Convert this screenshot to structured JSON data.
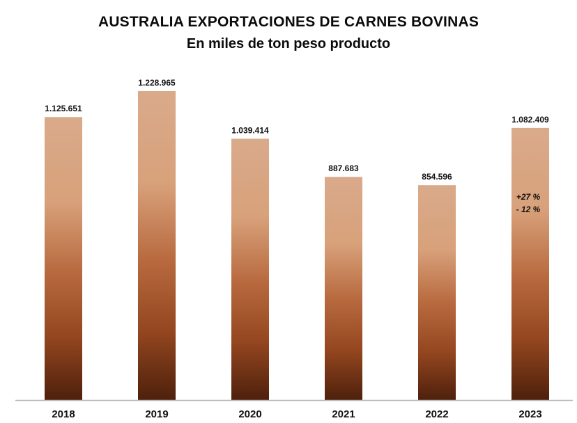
{
  "chart_data": {
    "type": "bar",
    "title": "AUSTRALIA EXPORTACIONES DE CARNES BOVINAS",
    "subtitle": "En miles de ton peso producto",
    "categories": [
      "2018",
      "2019",
      "2020",
      "2021",
      "2022",
      "2023"
    ],
    "values": [
      1125651,
      1228965,
      1039414,
      887683,
      854596,
      1082409
    ],
    "value_labels": [
      "1.125.651",
      "1.228.965",
      "1.039.414",
      "887.683",
      "854.596",
      "1.082.409"
    ],
    "ylim": [
      0,
      1320000
    ],
    "grid": false,
    "legend": "none",
    "annotations": [
      {
        "category": "2023",
        "lines": [
          "+27 %",
          "- 12 %"
        ]
      }
    ],
    "bar_gradient": {
      "top": "#d9aa8b",
      "upper_mid": "#d8a17a",
      "mid": "#b8693e",
      "lower_mid": "#93461f",
      "bottom": "#4e200c"
    },
    "axis_color": "#b5b5b5"
  }
}
